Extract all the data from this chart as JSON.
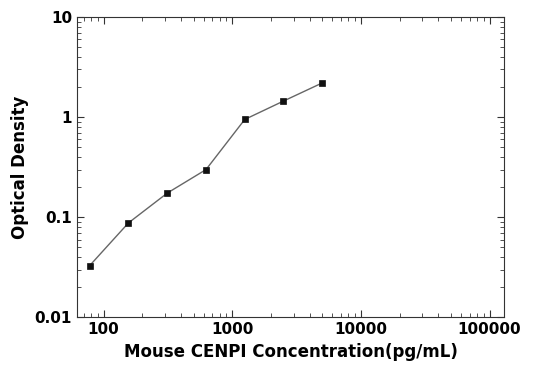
{
  "x": [
    78,
    156,
    313,
    625,
    1250,
    2500,
    5000
  ],
  "y": [
    0.033,
    0.088,
    0.175,
    0.3,
    0.95,
    1.45,
    2.2
  ],
  "xlabel": "Mouse CENPI Concentration(pg/mL)",
  "ylabel": "Optical Density",
  "xlim": [
    62,
    130000
  ],
  "ylim": [
    0.01,
    10
  ],
  "xticks": [
    100,
    1000,
    10000,
    100000
  ],
  "xtick_labels": [
    "100",
    "1000",
    "10000",
    "100000"
  ],
  "yticks": [
    0.01,
    0.1,
    1,
    10
  ],
  "ytick_labels": [
    "0.01",
    "0.1",
    "1",
    "10"
  ],
  "line_color": "#666666",
  "marker_color": "#111111",
  "marker": "s",
  "marker_size": 5,
  "linewidth": 1.0,
  "background_color": "#ffffff",
  "xlabel_fontsize": 12,
  "ylabel_fontsize": 12,
  "tick_fontsize": 11,
  "xlabel_fontweight": "bold",
  "ylabel_fontweight": "bold",
  "tick_fontweight": "bold"
}
